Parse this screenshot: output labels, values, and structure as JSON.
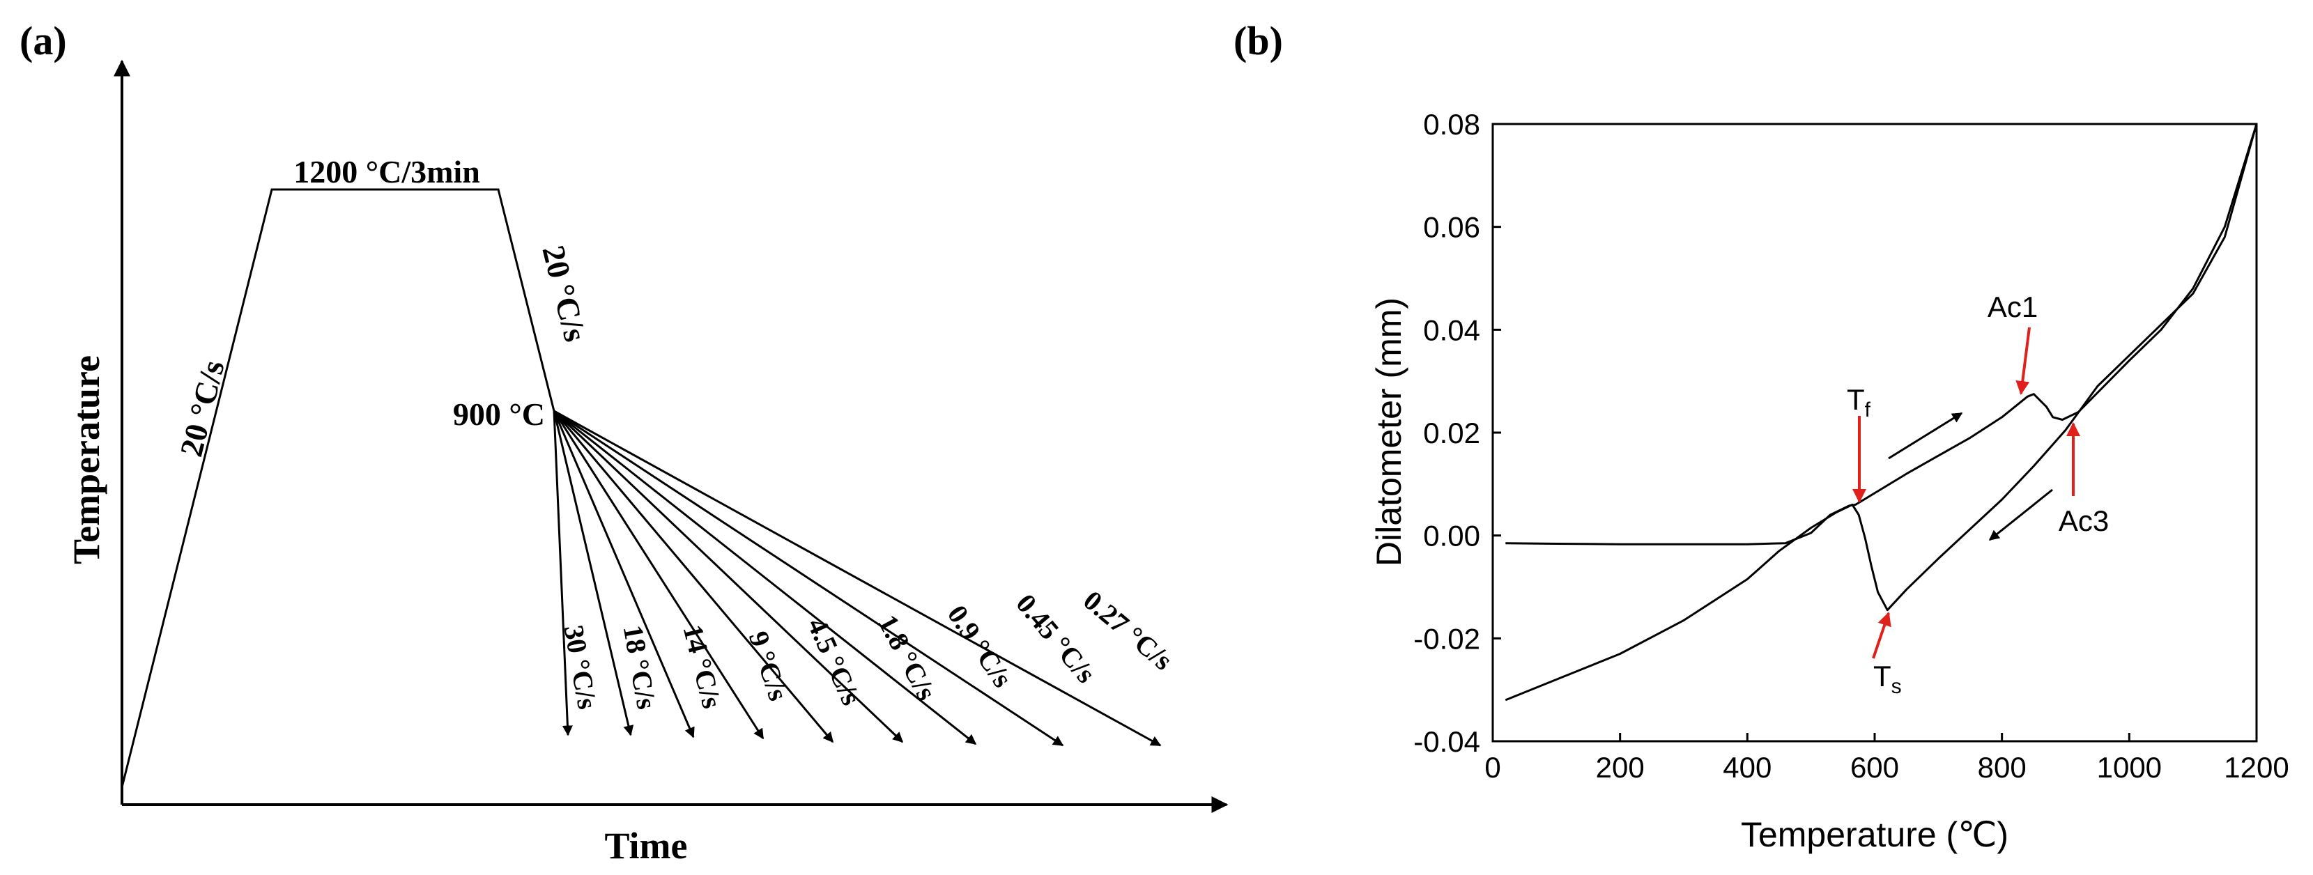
{
  "panel_a": {
    "label": "(a)",
    "xlabel": "Time",
    "ylabel": "Temperature",
    "heating_label": "20 °C/s",
    "hold_label": "1200 °C/3min",
    "cool_label": "20 °C/s",
    "start_label": "900 °C"
  },
  "panel_b": {
    "label": "(b)",
    "annotations": {
      "tf_main": "T",
      "tf_sub": "f",
      "ts_main": "T",
      "ts_sub": "s",
      "ac1": "Ac1",
      "ac3": "Ac3"
    }
  },
  "colors": {
    "line": "#000000",
    "annotation": "#e0201b"
  },
  "chart_data": [
    {
      "type": "line",
      "title": "",
      "xlabel": "Time",
      "ylabel": "Temperature",
      "schematic": true,
      "profile": [
        {
          "stage": "heating",
          "rate": "20 °C/s"
        },
        {
          "stage": "hold",
          "label": "1200 °C/3min"
        },
        {
          "stage": "cooling",
          "rate": "20 °C/s",
          "to": "900 °C"
        }
      ],
      "cooling_rates": [
        "30 °C/s",
        "18 °C/s",
        "14 °C/s",
        "9 °C/s",
        "4.5 °C/s",
        "1.8 °C/s",
        "0.9 °C/s",
        "0.45 °C/s",
        "0.27 °C/s"
      ]
    },
    {
      "type": "line",
      "title": "",
      "xlabel": "Temperature (℃)",
      "ylabel": "Dilatometer (mm)",
      "xlim": [
        0,
        1200
      ],
      "ylim": [
        -0.04,
        0.08
      ],
      "x_ticks": [
        "0",
        "200",
        "400",
        "600",
        "800",
        "1000",
        "1200"
      ],
      "y_ticks": [
        "-0.04",
        "-0.02",
        "0.00",
        "0.02",
        "0.04",
        "0.06",
        "0.08"
      ],
      "grid": false,
      "series": [
        {
          "values": [
            [
              20,
              -0.0015
            ],
            [
              100,
              -0.0016
            ],
            [
              200,
              -0.0017
            ],
            [
              300,
              -0.0017
            ],
            [
              400,
              -0.0017
            ],
            [
              460,
              -0.0015
            ],
            [
              500,
              0.0005
            ],
            [
              530,
              0.004
            ],
            [
              560,
              0.0058
            ],
            [
              570,
              0.006
            ],
            [
              650,
              0.012
            ],
            [
              700,
              0.0155
            ],
            [
              750,
              0.019
            ],
            [
              800,
              0.023
            ],
            [
              840,
              0.027
            ],
            [
              850,
              0.0275
            ],
            [
              870,
              0.025
            ],
            [
              880,
              0.023
            ],
            [
              895,
              0.0225
            ],
            [
              920,
              0.024
            ],
            [
              1000,
              0.034
            ],
            [
              1050,
              0.04
            ],
            [
              1100,
              0.048
            ],
            [
              1150,
              0.06
            ],
            [
              1200,
              0.08
            ]
          ]
        },
        {
          "values": [
            [
              1200,
              0.08
            ],
            [
              1150,
              0.058
            ],
            [
              1100,
              0.047
            ],
            [
              1050,
              0.041
            ],
            [
              1000,
              0.035
            ],
            [
              950,
              0.029
            ],
            [
              900,
              0.0205
            ],
            [
              850,
              0.0135
            ],
            [
              800,
              0.007
            ],
            [
              700,
              -0.0045
            ],
            [
              650,
              -0.0105
            ],
            [
              620,
              -0.0145
            ],
            [
              605,
              -0.011
            ],
            [
              595,
              -0.006
            ],
            [
              585,
              -0.0005
            ],
            [
              575,
              0.004
            ],
            [
              565,
              0.006
            ],
            [
              540,
              0.0045
            ],
            [
              500,
              0.0015
            ],
            [
              450,
              -0.003
            ],
            [
              400,
              -0.0085
            ],
            [
              300,
              -0.0165
            ],
            [
              200,
              -0.023
            ],
            [
              100,
              -0.028
            ],
            [
              20,
              -0.032
            ]
          ]
        }
      ],
      "annotations": [
        "Tf",
        "Ts",
        "Ac1",
        "Ac3"
      ]
    }
  ]
}
